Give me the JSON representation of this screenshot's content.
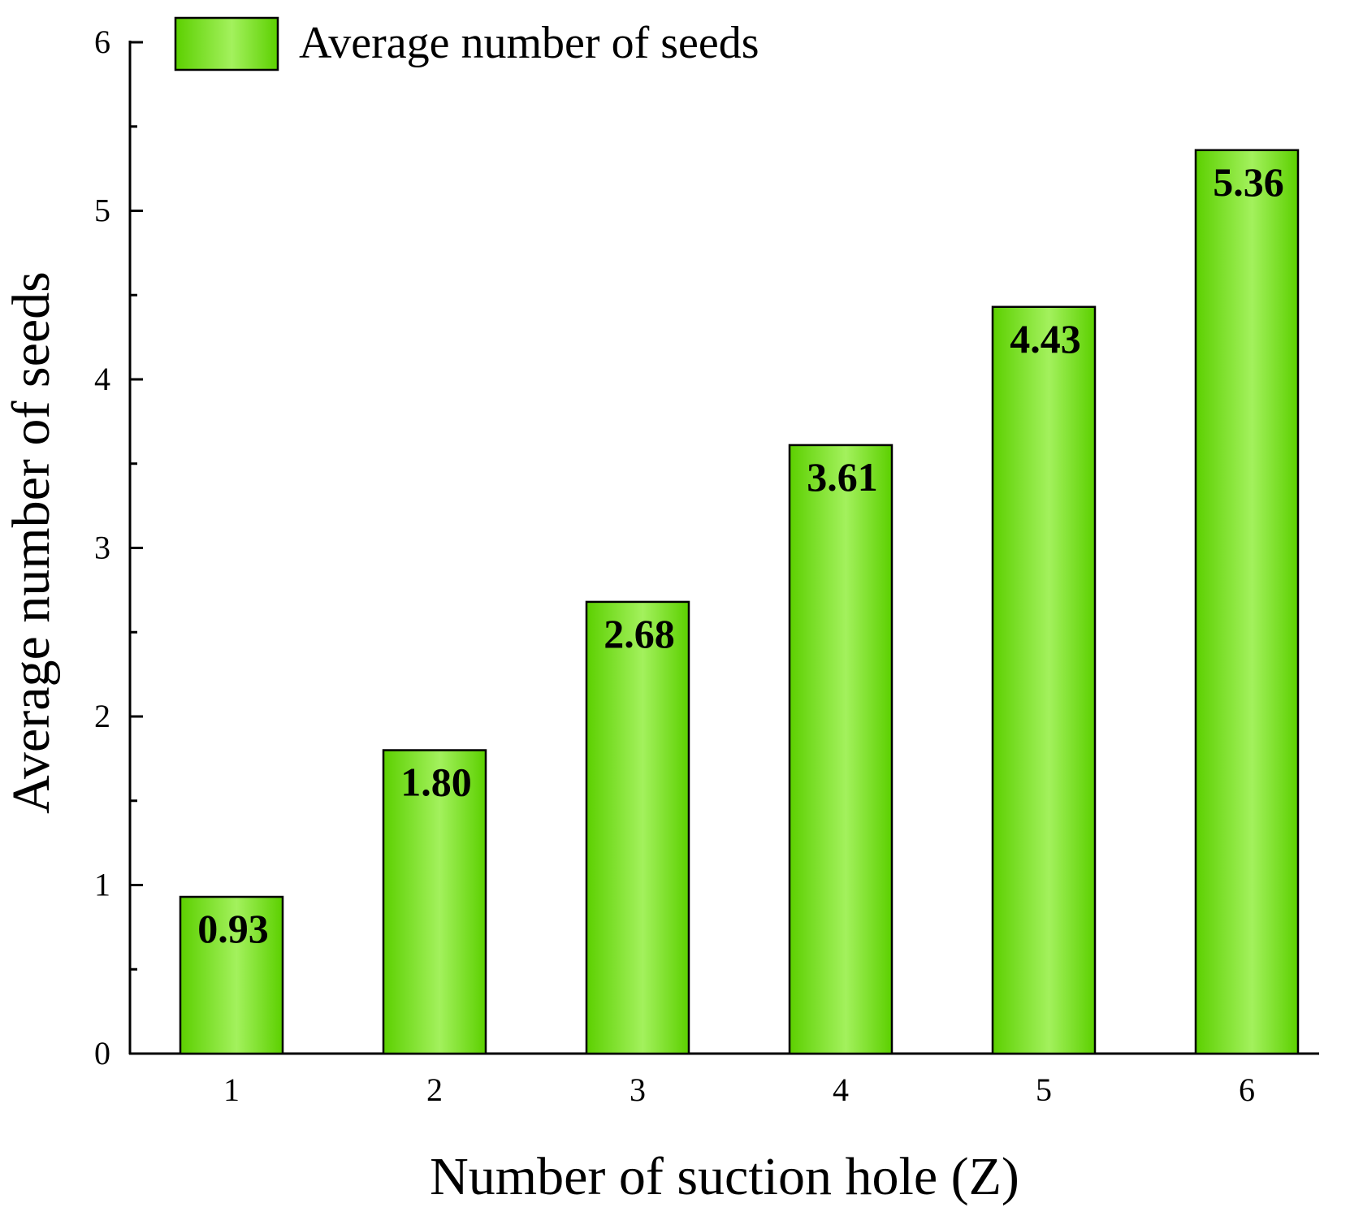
{
  "chart_data": {
    "type": "bar",
    "title": "",
    "xlabel": "Number of suction hole (Z)",
    "ylabel": "Average number of seeds",
    "categories": [
      "1",
      "2",
      "3",
      "4",
      "5",
      "6"
    ],
    "series": [
      {
        "name": "Average number of seeds",
        "values": [
          0.93,
          1.8,
          2.68,
          3.61,
          4.43,
          5.36
        ],
        "labels": [
          "0.93",
          "1.80",
          "2.68",
          "3.61",
          "4.43",
          "5.36"
        ]
      }
    ],
    "ylim": [
      0,
      6
    ],
    "yticks": [
      "0",
      "1",
      "2",
      "3",
      "4",
      "5",
      "6"
    ],
    "ytick_values": [
      0,
      1,
      2,
      3,
      4,
      5,
      6
    ],
    "minor_ytick_values": [
      0.5,
      1.5,
      2.5,
      3.5,
      4.5,
      5.5
    ],
    "grid": false,
    "legend_position": "top-left",
    "colors": {
      "bar_edge": "#5cd000",
      "bar_center": "#a3f15d",
      "outline": "#000000"
    }
  }
}
